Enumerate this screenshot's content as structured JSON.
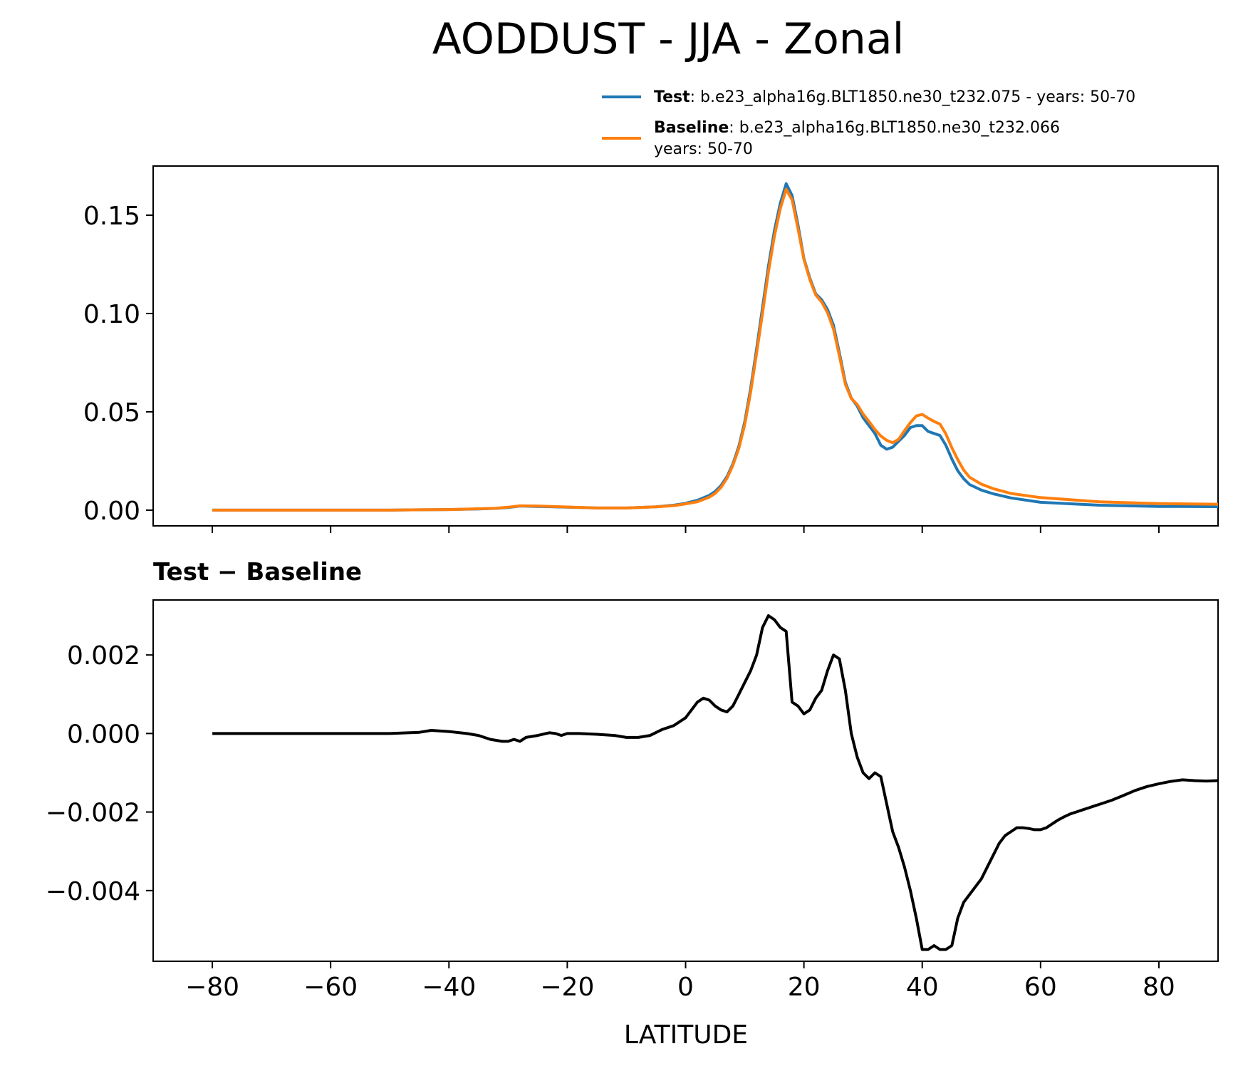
{
  "title": "AODDUST - JJA - Zonal",
  "legend": {
    "entries": [
      {
        "bold": "Test",
        "text": ": b.e23_alpha16g.BLT1850.ne30_t232.075 - years: 50-70",
        "text2": "",
        "color": "#1f77b4"
      },
      {
        "bold": "Baseline",
        "text": ": b.e23_alpha16g.BLT1850.ne30_t232.066",
        "text2": "years: 50-70",
        "color": "#ff7f0e"
      }
    ]
  },
  "diff_title": "Test − Baseline",
  "xlabel": "LATITUDE",
  "chart_data": [
    {
      "type": "line",
      "title": "",
      "xlabel": "",
      "ylabel": "",
      "xlim": [
        -90,
        90
      ],
      "ylim": [
        -0.008,
        0.175
      ],
      "xticks": [
        -80,
        -60,
        -40,
        -20,
        0,
        20,
        40,
        60,
        80
      ],
      "yticks": [
        0.0,
        0.05,
        0.1,
        0.15
      ],
      "ytick_labels": [
        "0.00",
        "0.05",
        "0.10",
        "0.15"
      ],
      "legend_position": "top-right, above axes",
      "grid": false,
      "series": [
        {
          "name": "Test",
          "color": "#1f77b4",
          "x": [
            -80,
            -70,
            -60,
            -50,
            -45,
            -40,
            -35,
            -32,
            -30,
            -28,
            -25,
            -20,
            -15,
            -10,
            -5,
            -2,
            0,
            2,
            4,
            5,
            6,
            7,
            8,
            9,
            10,
            11,
            12,
            13,
            14,
            15,
            16,
            17,
            18,
            19,
            20,
            21,
            22,
            23,
            24,
            25,
            26,
            27,
            28,
            29,
            30,
            31,
            32,
            33,
            34,
            35,
            36,
            37,
            38,
            39,
            40,
            41,
            42,
            43,
            44,
            45,
            46,
            47,
            48,
            50,
            52,
            55,
            60,
            70,
            80,
            90
          ],
          "y": [
            0.0,
            0.0,
            0.0,
            0.0,
            0.0002,
            0.0003,
            0.0006,
            0.0009,
            0.0013,
            0.0021,
            0.0019,
            0.0015,
            0.0011,
            0.0011,
            0.0017,
            0.0025,
            0.0035,
            0.005,
            0.0075,
            0.0095,
            0.0125,
            0.017,
            0.0235,
            0.0325,
            0.045,
            0.062,
            0.082,
            0.103,
            0.124,
            0.142,
            0.156,
            0.166,
            0.16,
            0.145,
            0.128,
            0.118,
            0.11,
            0.107,
            0.102,
            0.094,
            0.08,
            0.065,
            0.057,
            0.053,
            0.047,
            0.043,
            0.039,
            0.033,
            0.031,
            0.032,
            0.035,
            0.038,
            0.042,
            0.043,
            0.043,
            0.04,
            0.039,
            0.038,
            0.033,
            0.026,
            0.02,
            0.016,
            0.013,
            0.0102,
            0.0083,
            0.0062,
            0.004,
            0.0025,
            0.0019,
            0.0018
          ]
        },
        {
          "name": "Baseline",
          "color": "#ff7f0e",
          "x": [
            -80,
            -70,
            -60,
            -50,
            -45,
            -40,
            -35,
            -32,
            -30,
            -28,
            -25,
            -20,
            -15,
            -10,
            -5,
            -2,
            0,
            2,
            4,
            5,
            6,
            7,
            8,
            9,
            10,
            11,
            12,
            13,
            14,
            15,
            16,
            17,
            18,
            19,
            20,
            21,
            22,
            23,
            24,
            25,
            26,
            27,
            28,
            29,
            30,
            31,
            32,
            33,
            34,
            35,
            36,
            37,
            38,
            39,
            40,
            41,
            42,
            43,
            44,
            45,
            46,
            47,
            48,
            50,
            52,
            55,
            60,
            70,
            80,
            90
          ],
          "y": [
            0.0,
            0.0,
            0.0,
            0.0,
            0.0002,
            0.0003,
            0.0007,
            0.001,
            0.0015,
            0.0022,
            0.0021,
            0.0016,
            0.0011,
            0.0011,
            0.0017,
            0.0023,
            0.0032,
            0.0043,
            0.0066,
            0.0085,
            0.0116,
            0.0162,
            0.0228,
            0.0315,
            0.0436,
            0.0602,
            0.0798,
            0.1002,
            0.1212,
            0.1392,
            0.1533,
            0.1632,
            0.1578,
            0.1432,
            0.1275,
            0.1173,
            0.1094,
            0.1059,
            0.1004,
            0.0921,
            0.0785,
            0.064,
            0.0568,
            0.0538,
            0.0489,
            0.0451,
            0.041,
            0.0377,
            0.0355,
            0.0343,
            0.036,
            0.0404,
            0.0445,
            0.0479,
            0.0487,
            0.0468,
            0.0451,
            0.0438,
            0.0388,
            0.0317,
            0.0257,
            0.0204,
            0.0167,
            0.0132,
            0.0109,
            0.0085,
            0.0064,
            0.0042,
            0.0033,
            0.003
          ]
        }
      ]
    },
    {
      "type": "line",
      "title": "Test − Baseline",
      "xlabel": "LATITUDE",
      "ylabel": "",
      "xlim": [
        -90,
        90
      ],
      "ylim": [
        -0.0058,
        0.0034
      ],
      "xticks": [
        -80,
        -60,
        -40,
        -20,
        0,
        20,
        40,
        60,
        80
      ],
      "yticks": [
        -0.004,
        -0.002,
        0.0,
        0.002
      ],
      "ytick_labels": [
        "−0.004",
        "−0.002",
        "0.000",
        "0.002"
      ],
      "grid": false,
      "series": [
        {
          "color": "#000000",
          "x": [
            -80,
            -70,
            -60,
            -50,
            -45,
            -43,
            -40,
            -37,
            -35,
            -33,
            -31,
            -30,
            -29,
            -28,
            -27,
            -25,
            -23,
            -22,
            -21,
            -20,
            -18,
            -15,
            -12,
            -10,
            -8,
            -6,
            -4,
            -2,
            0,
            2,
            3,
            4,
            5,
            6,
            7,
            8,
            9,
            10,
            11,
            12,
            13,
            14,
            15,
            16,
            17,
            18,
            19,
            20,
            21,
            22,
            23,
            24,
            25,
            26,
            27,
            28,
            29,
            30,
            31,
            32,
            33,
            34,
            35,
            36,
            37,
            38,
            39,
            40,
            41,
            42,
            43,
            44,
            45,
            46,
            47,
            48,
            49,
            50,
            51,
            52,
            53,
            54,
            55,
            56,
            57,
            58,
            59,
            60,
            61,
            62,
            63,
            64,
            65,
            66,
            67,
            68,
            69,
            70,
            72,
            74,
            76,
            78,
            80,
            82,
            84,
            86,
            88,
            90
          ],
          "y": [
            0.0,
            0.0,
            0.0,
            0.0,
            3e-05,
            8e-05,
            5e-05,
            0.0,
            -5e-05,
            -0.00015,
            -0.0002,
            -0.0002,
            -0.00015,
            -0.0002,
            -0.0001,
            -5e-05,
            2e-05,
            0.0,
            -5e-05,
            0.0,
            0.0,
            -2e-05,
            -5e-05,
            -0.0001,
            -0.0001,
            -5e-05,
            0.0001,
            0.0002,
            0.0004,
            0.0008,
            0.0009,
            0.00085,
            0.0007,
            0.0006,
            0.00055,
            0.0007,
            0.001,
            0.0013,
            0.0016,
            0.002,
            0.0027,
            0.003,
            0.0029,
            0.0027,
            0.0026,
            0.0008,
            0.0007,
            0.0005,
            0.0006,
            0.0009,
            0.0011,
            0.0016,
            0.002,
            0.0019,
            0.0011,
            0.0,
            -0.0006,
            -0.001,
            -0.00115,
            -0.001,
            -0.0011,
            -0.0018,
            -0.0025,
            -0.0029,
            -0.0034,
            -0.004,
            -0.0047,
            -0.0055,
            -0.0055,
            -0.0054,
            -0.0055,
            -0.0055,
            -0.0054,
            -0.0047,
            -0.0043,
            -0.0041,
            -0.0039,
            -0.0037,
            -0.0034,
            -0.0031,
            -0.0028,
            -0.0026,
            -0.0025,
            -0.0024,
            -0.0024,
            -0.00242,
            -0.00245,
            -0.00245,
            -0.0024,
            -0.0023,
            -0.0022,
            -0.00212,
            -0.00205,
            -0.002,
            -0.00195,
            -0.0019,
            -0.00185,
            -0.0018,
            -0.0017,
            -0.00158,
            -0.00145,
            -0.00135,
            -0.00128,
            -0.00122,
            -0.00118,
            -0.0012,
            -0.00121,
            -0.0012
          ]
        }
      ]
    }
  ]
}
